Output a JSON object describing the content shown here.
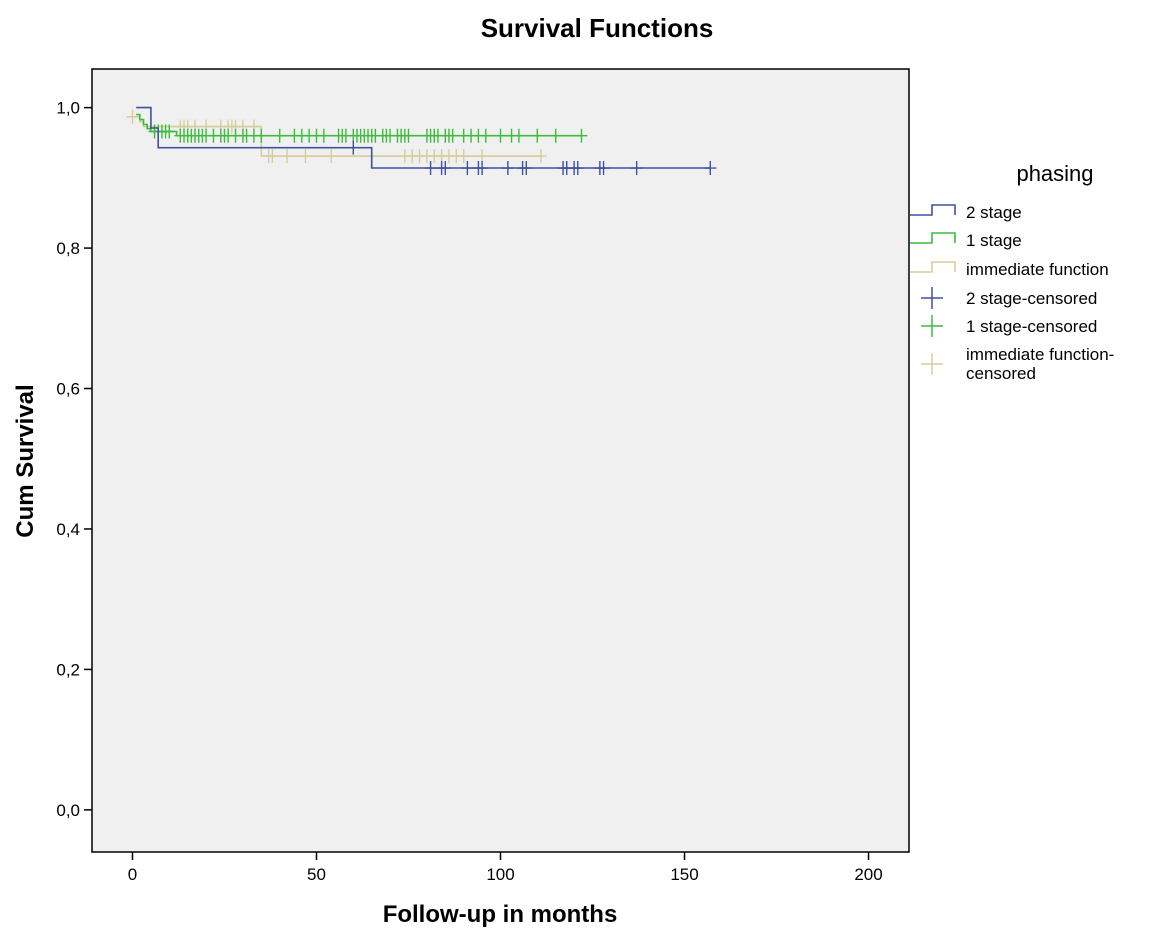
{
  "chart_data": {
    "type": "line",
    "subtype": "kaplan-meier step",
    "title": "Survival Functions",
    "xlabel": "Follow-up in months",
    "ylabel": "Cum Survival",
    "xlim": [
      -11,
      211
    ],
    "ylim": [
      -0.06,
      1.055
    ],
    "x_ticks": [
      0,
      50,
      100,
      150,
      200
    ],
    "x_tick_labels": [
      "0",
      "50",
      "100",
      "150",
      "200"
    ],
    "y_ticks": [
      0,
      0.2,
      0.4,
      0.6,
      0.8,
      1.0
    ],
    "y_tick_labels": [
      "0,0",
      "0,2",
      "0,4",
      "0,6",
      "0,8",
      "1,0"
    ],
    "grid": false,
    "plot_background": "#f0f0f0",
    "legend_title": "phasing",
    "legend_position": "right",
    "legend_entries": [
      {
        "label": "2 stage",
        "kind": "step",
        "color": "#3e51a3"
      },
      {
        "label": "1 stage",
        "kind": "step",
        "color": "#3dbb3d"
      },
      {
        "label": "immediate function",
        "kind": "step",
        "color": "#d7cd9c"
      },
      {
        "label": "2 stage-censored",
        "kind": "censor",
        "color": "#3e51a3"
      },
      {
        "label": "1 stage-censored",
        "kind": "censor",
        "color": "#3dbb3d"
      },
      {
        "label": "immediate function-censored",
        "kind": "censor",
        "color": "#d7cd9c",
        "lines": [
          "immediate function-",
          "censored"
        ]
      }
    ],
    "series": [
      {
        "name": "2 stage",
        "color": "#3e51a3",
        "steps": [
          [
            1,
            1.0
          ],
          [
            5,
            0.971
          ],
          [
            7,
            0.943
          ],
          [
            65,
            0.914
          ],
          [
            157,
            0.914
          ]
        ],
        "censored": [
          [
            60,
            0.943
          ],
          [
            81,
            0.914
          ],
          [
            84,
            0.914
          ],
          [
            85,
            0.914
          ],
          [
            91,
            0.914
          ],
          [
            94,
            0.914
          ],
          [
            95,
            0.914
          ],
          [
            102,
            0.914
          ],
          [
            106,
            0.914
          ],
          [
            107,
            0.914
          ],
          [
            117,
            0.914
          ],
          [
            118,
            0.914
          ],
          [
            120,
            0.914
          ],
          [
            121,
            0.914
          ],
          [
            127,
            0.914
          ],
          [
            128,
            0.914
          ],
          [
            137,
            0.914
          ],
          [
            157,
            0.914
          ]
        ]
      },
      {
        "name": "1 stage",
        "color": "#3dbb3d",
        "steps": [
          [
            1,
            0.99
          ],
          [
            2,
            0.983
          ],
          [
            3,
            0.976
          ],
          [
            4,
            0.97
          ],
          [
            5,
            0.966
          ],
          [
            12,
            0.96
          ],
          [
            122,
            0.96
          ]
        ],
        "censored": [
          [
            6,
            0.966
          ],
          [
            7,
            0.966
          ],
          [
            8,
            0.966
          ],
          [
            9,
            0.966
          ],
          [
            10,
            0.966
          ],
          [
            13,
            0.96
          ],
          [
            14,
            0.96
          ],
          [
            15,
            0.96
          ],
          [
            16,
            0.96
          ],
          [
            17,
            0.96
          ],
          [
            18,
            0.96
          ],
          [
            19,
            0.96
          ],
          [
            20,
            0.96
          ],
          [
            22,
            0.96
          ],
          [
            24,
            0.96
          ],
          [
            25,
            0.96
          ],
          [
            26,
            0.96
          ],
          [
            28,
            0.96
          ],
          [
            30,
            0.96
          ],
          [
            31,
            0.96
          ],
          [
            33,
            0.96
          ],
          [
            35,
            0.96
          ],
          [
            40,
            0.96
          ],
          [
            44,
            0.96
          ],
          [
            46,
            0.96
          ],
          [
            48,
            0.96
          ],
          [
            50,
            0.96
          ],
          [
            52,
            0.96
          ],
          [
            56,
            0.96
          ],
          [
            57,
            0.96
          ],
          [
            58,
            0.96
          ],
          [
            60,
            0.96
          ],
          [
            61,
            0.96
          ],
          [
            62,
            0.96
          ],
          [
            63,
            0.96
          ],
          [
            64,
            0.96
          ],
          [
            65,
            0.96
          ],
          [
            66,
            0.96
          ],
          [
            68,
            0.96
          ],
          [
            69,
            0.96
          ],
          [
            70,
            0.96
          ],
          [
            72,
            0.96
          ],
          [
            73,
            0.96
          ],
          [
            74,
            0.96
          ],
          [
            75,
            0.96
          ],
          [
            80,
            0.96
          ],
          [
            81,
            0.96
          ],
          [
            82,
            0.96
          ],
          [
            83,
            0.96
          ],
          [
            85,
            0.96
          ],
          [
            86,
            0.96
          ],
          [
            87,
            0.96
          ],
          [
            90,
            0.96
          ],
          [
            92,
            0.96
          ],
          [
            94,
            0.96
          ],
          [
            96,
            0.96
          ],
          [
            100,
            0.96
          ],
          [
            103,
            0.96
          ],
          [
            105,
            0.96
          ],
          [
            110,
            0.96
          ],
          [
            115,
            0.96
          ],
          [
            122,
            0.96
          ]
        ]
      },
      {
        "name": "immediate function",
        "color": "#d7cd9c",
        "steps": [
          [
            0,
            0.987
          ],
          [
            2,
            0.98
          ],
          [
            3,
            0.973
          ],
          [
            35,
            0.931
          ],
          [
            111,
            0.931
          ]
        ],
        "censored": [
          [
            0,
            0.987
          ],
          [
            13,
            0.973
          ],
          [
            14,
            0.973
          ],
          [
            15,
            0.973
          ],
          [
            17,
            0.973
          ],
          [
            20,
            0.973
          ],
          [
            24,
            0.973
          ],
          [
            26,
            0.973
          ],
          [
            27,
            0.973
          ],
          [
            28,
            0.973
          ],
          [
            30,
            0.973
          ],
          [
            33,
            0.973
          ],
          [
            37,
            0.931
          ],
          [
            38,
            0.931
          ],
          [
            42,
            0.931
          ],
          [
            47,
            0.931
          ],
          [
            54,
            0.931
          ],
          [
            74,
            0.931
          ],
          [
            76,
            0.931
          ],
          [
            78,
            0.931
          ],
          [
            80,
            0.931
          ],
          [
            82,
            0.931
          ],
          [
            84,
            0.931
          ],
          [
            86,
            0.931
          ],
          [
            88,
            0.931
          ],
          [
            90,
            0.931
          ],
          [
            95,
            0.931
          ],
          [
            111,
            0.931
          ]
        ]
      }
    ]
  }
}
